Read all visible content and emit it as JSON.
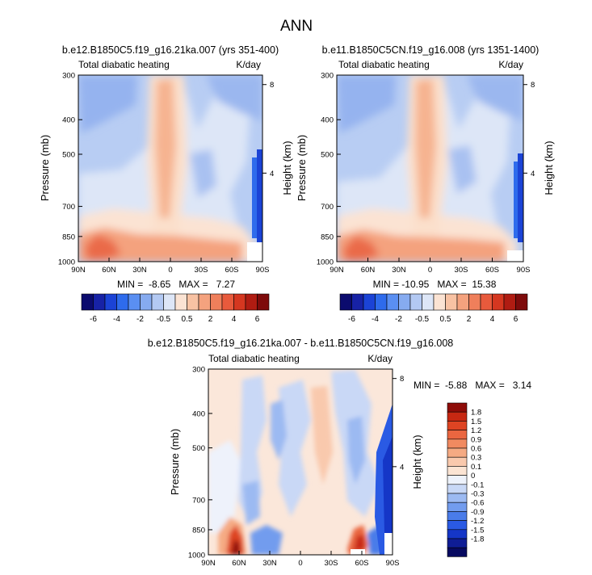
{
  "figure": {
    "title": "ANN",
    "colors": {
      "main_scale": [
        "#0b0b6e",
        "#1722a6",
        "#1b43d6",
        "#2e6bec",
        "#5a8ff2",
        "#86abf0",
        "#b3c9f3",
        "#dde6f7",
        "#fbe3d3",
        "#f8c2a3",
        "#f4a27e",
        "#ef7f5b",
        "#e85a3c",
        "#d53720",
        "#b01c12",
        "#7e0b0b"
      ],
      "diff_scale": [
        "#070a60",
        "#0f1d95",
        "#1536c7",
        "#2a5ae4",
        "#4a7ce9",
        "#729cee",
        "#9cbaf2",
        "#c8d8f6",
        "#edf2fb",
        "#fbe4d3",
        "#f9c9ad",
        "#f5aa83",
        "#f18a60",
        "#ea6640",
        "#de4423",
        "#c72812",
        "#8e0c08"
      ]
    }
  },
  "panels": [
    {
      "title": "b.e12.B1850C5.f19_g16.21ka.007 (yrs 351-400)",
      "left_label": "Total diabatic heating",
      "right_label": "K/day",
      "ylabel": "Pressure (mb)",
      "y2label": "Height (km)",
      "min_max": "MIN =  -8.65   MAX =   7.27"
    },
    {
      "title": "b.e11.B1850C5CN.f19_g16.008 (yrs 1351-1400)",
      "left_label": "Total diabatic heating",
      "right_label": "K/day",
      "ylabel": "Pressure (mb)",
      "y2label": "Height (km)",
      "min_max": "MIN = -10.95   MAX =  15.38"
    },
    {
      "title": "b.e12.B1850C5.f19_g16.21ka.007 - b.e11.B1850C5CN.f19_g16.008",
      "left_label": "Total diabatic heating",
      "right_label": "K/day",
      "ylabel": "Pressure (mb)",
      "y2label": "Height (km)",
      "min_max": "MIN =  -5.88   MAX =   3.14"
    }
  ],
  "chart_data": [
    {
      "type": "heatmap",
      "title": "b.e12.B1850C5.f19_g16.21ka.007 (yrs 351-400)",
      "subtitle_left": "Total diabatic heating",
      "subtitle_right": "K/day",
      "xlabel": "",
      "ylabel": "Pressure (mb)",
      "y2label": "Height (km)",
      "x_ticks": [
        "90N",
        "60N",
        "30N",
        "0",
        "30S",
        "60S",
        "90S"
      ],
      "x_values": [
        90,
        60,
        30,
        0,
        -30,
        -60,
        -90
      ],
      "xlim": [
        90,
        -90
      ],
      "y_ticks": [
        300,
        400,
        500,
        700,
        850,
        1000
      ],
      "ylim": [
        1000,
        300
      ],
      "y2_ticks": [
        8,
        4
      ],
      "min": -8.65,
      "max": 7.27,
      "colorbar_ticks": [
        -6,
        -4,
        -2,
        -0.5,
        0.5,
        2,
        4,
        6
      ]
    },
    {
      "type": "heatmap",
      "title": "b.e11.B1850C5CN.f19_g16.008 (yrs 1351-1400)",
      "subtitle_left": "Total diabatic heating",
      "subtitle_right": "K/day",
      "xlabel": "",
      "ylabel": "Pressure (mb)",
      "y2label": "Height (km)",
      "x_ticks": [
        "90N",
        "60N",
        "30N",
        "0",
        "30S",
        "60S",
        "90S"
      ],
      "x_values": [
        90,
        60,
        30,
        0,
        -30,
        -60,
        -90
      ],
      "xlim": [
        90,
        -90
      ],
      "y_ticks": [
        300,
        400,
        500,
        700,
        850,
        1000
      ],
      "ylim": [
        1000,
        300
      ],
      "y2_ticks": [
        8,
        4
      ],
      "min": -10.95,
      "max": 15.38,
      "colorbar_ticks": [
        -6,
        -4,
        -2,
        -0.5,
        0.5,
        2,
        4,
        6
      ]
    },
    {
      "type": "heatmap",
      "title": "b.e12.B1850C5.f19_g16.21ka.007 - b.e11.B1850C5CN.f19_g16.008",
      "subtitle_left": "Total diabatic heating",
      "subtitle_right": "K/day",
      "xlabel": "",
      "ylabel": "Pressure (mb)",
      "y2label": "Height (km)",
      "x_ticks": [
        "90N",
        "60N",
        "30N",
        "0",
        "30S",
        "60S",
        "90S"
      ],
      "x_values": [
        90,
        60,
        30,
        0,
        -30,
        -60,
        -90
      ],
      "xlim": [
        90,
        -90
      ],
      "y_ticks": [
        300,
        400,
        500,
        700,
        850,
        1000
      ],
      "ylim": [
        1000,
        300
      ],
      "y2_ticks": [
        8,
        4
      ],
      "min": -5.88,
      "max": 3.14,
      "colorbar_ticks": [
        1.8,
        1.5,
        1.2,
        0.9,
        0.6,
        0.3,
        0.1,
        0,
        -0.1,
        -0.3,
        -0.6,
        -0.9,
        -1.2,
        -1.5,
        -1.8
      ]
    }
  ]
}
